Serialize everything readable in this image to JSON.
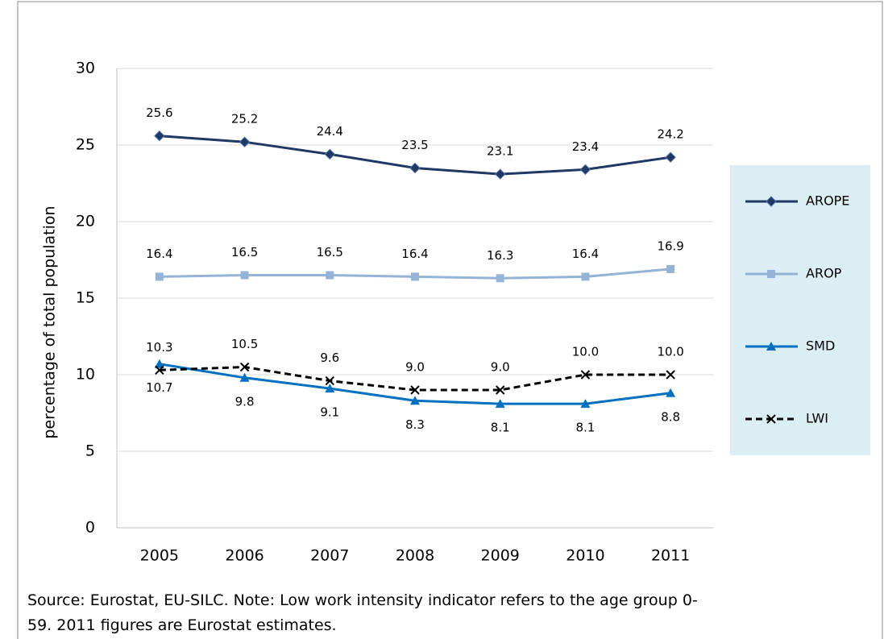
{
  "chart_data": {
    "type": "line",
    "y_label": "percentage of total population",
    "categories": [
      "2005",
      "2006",
      "2007",
      "2008",
      "2009",
      "2010",
      "2011"
    ],
    "series": [
      {
        "name": "AROPE",
        "color": "#1f3864",
        "marker": "diamond",
        "linestyle": "solid",
        "values": [
          25.6,
          25.2,
          24.4,
          23.5,
          23.1,
          23.4,
          24.2
        ]
      },
      {
        "name": "AROP",
        "color": "#95b3d7",
        "marker": "square",
        "linestyle": "solid",
        "values": [
          16.4,
          16.5,
          16.5,
          16.4,
          16.3,
          16.4,
          16.9
        ]
      },
      {
        "name": "SMD",
        "color": "#0070c0",
        "marker": "triangle",
        "linestyle": "solid",
        "values": [
          10.7,
          9.8,
          9.1,
          8.3,
          8.1,
          8.1,
          8.8
        ]
      },
      {
        "name": "LWI",
        "color": "#000000",
        "marker": "x",
        "linestyle": "dashed",
        "values": [
          10.3,
          10.5,
          9.6,
          9.0,
          9.0,
          10.0,
          10.0
        ],
        "value_labels": [
          "10.3",
          "10.5",
          "9.6",
          "9.0",
          "9.0",
          "10.0",
          "10.0"
        ]
      }
    ],
    "ylim": [
      0,
      30
    ],
    "yticks": [
      0,
      5,
      10,
      15,
      20,
      25,
      30
    ],
    "grid": true,
    "legend": "right",
    "note": "Source: Eurostat, EU-SILC. Note: Low work intensity indicator refers to the age group 0-59. 2011 figures are Eurostat estimates."
  }
}
